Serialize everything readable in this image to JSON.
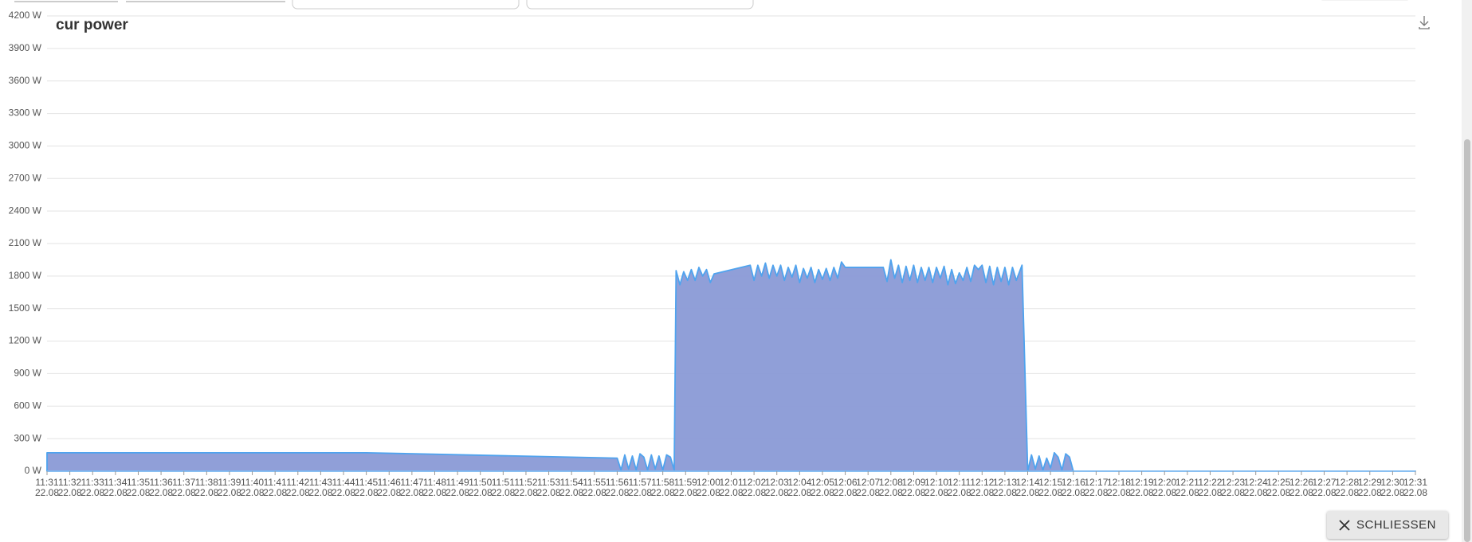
{
  "close_button": "SCHLIESSEN",
  "chart_data": {
    "type": "area",
    "title": "cur power",
    "x": [
      "11:31:00",
      "11:45:00",
      "11:56:00",
      "11:56:10",
      "11:56:20",
      "11:56:30",
      "11:56:40",
      "11:56:50",
      "11:57:00",
      "11:57:10",
      "11:57:20",
      "11:57:30",
      "11:57:40",
      "11:57:50",
      "11:58:00",
      "11:58:10",
      "11:58:20",
      "11:58:30",
      "11:58:35",
      "11:58:45",
      "11:58:55",
      "11:59:05",
      "11:59:15",
      "11:59:25",
      "11:59:35",
      "11:59:45",
      "11:59:55",
      "12:00:05",
      "12:00:15",
      "12:01:50",
      "12:02:00",
      "12:02:10",
      "12:02:20",
      "12:02:30",
      "12:02:40",
      "12:02:50",
      "12:03:00",
      "12:03:10",
      "12:03:20",
      "12:03:30",
      "12:03:40",
      "12:03:50",
      "12:04:00",
      "12:04:10",
      "12:04:20",
      "12:04:30",
      "12:04:40",
      "12:04:50",
      "12:05:00",
      "12:05:10",
      "12:05:20",
      "12:05:30",
      "12:05:40",
      "12:05:50",
      "12:06:00",
      "12:07:40",
      "12:07:50",
      "12:08:00",
      "12:08:10",
      "12:08:20",
      "12:08:30",
      "12:08:40",
      "12:08:50",
      "12:09:00",
      "12:09:10",
      "12:09:20",
      "12:09:30",
      "12:09:40",
      "12:09:50",
      "12:10:00",
      "12:10:10",
      "12:10:20",
      "12:10:30",
      "12:10:40",
      "12:10:50",
      "12:11:00",
      "12:11:10",
      "12:11:20",
      "12:11:30",
      "12:11:40",
      "12:11:50",
      "12:12:00",
      "12:12:10",
      "12:12:20",
      "12:12:30",
      "12:12:40",
      "12:12:50",
      "12:13:00",
      "12:13:10",
      "12:13:20",
      "12:13:30",
      "12:13:45",
      "12:14:00",
      "12:14:10",
      "12:14:20",
      "12:14:30",
      "12:14:40",
      "12:14:50",
      "12:15:00",
      "12:15:10",
      "12:15:20",
      "12:15:30",
      "12:15:40",
      "12:15:50",
      "12:16:00",
      "12:31:00"
    ],
    "values": [
      170,
      170,
      120,
      10,
      150,
      20,
      140,
      10,
      160,
      130,
      10,
      150,
      20,
      140,
      10,
      150,
      130,
      10,
      1850,
      1720,
      1840,
      1760,
      1860,
      1760,
      1880,
      1800,
      1860,
      1740,
      1820,
      1900,
      1760,
      1900,
      1800,
      1920,
      1780,
      1900,
      1800,
      1900,
      1760,
      1880,
      1790,
      1900,
      1740,
      1870,
      1780,
      1880,
      1740,
      1860,
      1770,
      1870,
      1760,
      1880,
      1780,
      1930,
      1880,
      1880,
      1750,
      1950,
      1780,
      1900,
      1740,
      1890,
      1760,
      1900,
      1740,
      1880,
      1760,
      1880,
      1740,
      1880,
      1780,
      1890,
      1720,
      1860,
      1730,
      1830,
      1760,
      1880,
      1750,
      1900,
      1860,
      1900,
      1740,
      1890,
      1720,
      1880,
      1750,
      1880,
      1720,
      1880,
      1760,
      1900,
      0,
      150,
      20,
      140,
      10,
      120,
      30,
      170,
      130,
      10,
      160,
      130,
      0,
      0
    ],
    "color": "#8a9ad6",
    "line_color": "#4fa3ee",
    "xlim": [
      "11:31",
      "12:31"
    ],
    "xticks": [
      {
        "value": "11:31",
        "label": "11:31\n22.08"
      },
      {
        "value": "11:32",
        "label": "11:32\n22.08"
      },
      {
        "value": "11:33",
        "label": "11:33\n22.08"
      },
      {
        "value": "11:34",
        "label": "11:34\n22.08"
      },
      {
        "value": "11:35",
        "label": "11:35\n22.08"
      },
      {
        "value": "11:36",
        "label": "11:36\n22.08"
      },
      {
        "value": "11:37",
        "label": "11:37\n22.08"
      },
      {
        "value": "11:38",
        "label": "11:38\n22.08"
      },
      {
        "value": "11:39",
        "label": "11:39\n22.08"
      },
      {
        "value": "11:40",
        "label": "11:40\n22.08"
      },
      {
        "value": "11:41",
        "label": "11:41\n22.08"
      },
      {
        "value": "11:42",
        "label": "11:42\n22.08"
      },
      {
        "value": "11:43",
        "label": "11:43\n22.08"
      },
      {
        "value": "11:44",
        "label": "11:44\n22.08"
      },
      {
        "value": "11:45",
        "label": "11:45\n22.08"
      },
      {
        "value": "11:46",
        "label": "11:46\n22.08"
      },
      {
        "value": "11:47",
        "label": "11:47\n22.08"
      },
      {
        "value": "11:48",
        "label": "11:48\n22.08"
      },
      {
        "value": "11:49",
        "label": "11:49\n22.08"
      },
      {
        "value": "11:50",
        "label": "11:50\n22.08"
      },
      {
        "value": "11:51",
        "label": "11:51\n22.08"
      },
      {
        "value": "11:52",
        "label": "11:52\n22.08"
      },
      {
        "value": "11:53",
        "label": "11:53\n22.08"
      },
      {
        "value": "11:54",
        "label": "11:54\n22.08"
      },
      {
        "value": "11:55",
        "label": "11:55\n22.08"
      },
      {
        "value": "11:56",
        "label": "11:56\n22.08"
      },
      {
        "value": "11:57",
        "label": "11:57\n22.08"
      },
      {
        "value": "11:58",
        "label": "11:58\n22.08"
      },
      {
        "value": "11:59",
        "label": "11:59\n22.08"
      },
      {
        "value": "12:00",
        "label": "12:00\n22.08"
      },
      {
        "value": "12:01",
        "label": "12:01\n22.08"
      },
      {
        "value": "12:02",
        "label": "12:02\n22.08"
      },
      {
        "value": "12:03",
        "label": "12:03\n22.08"
      },
      {
        "value": "12:04",
        "label": "12:04\n22.08"
      },
      {
        "value": "12:05",
        "label": "12:05\n22.08"
      },
      {
        "value": "12:06",
        "label": "12:06\n22.08"
      },
      {
        "value": "12:07",
        "label": "12:07\n22.08"
      },
      {
        "value": "12:08",
        "label": "12:08\n22.08"
      },
      {
        "value": "12:09",
        "label": "12:09\n22.08"
      },
      {
        "value": "12:10",
        "label": "12:10\n22.08"
      },
      {
        "value": "12:11",
        "label": "12:11\n22.08"
      },
      {
        "value": "12:12",
        "label": "12:12\n22.08"
      },
      {
        "value": "12:13",
        "label": "12:13\n22.08"
      },
      {
        "value": "12:14",
        "label": "12:14\n22.08"
      },
      {
        "value": "12:15",
        "label": "12:15\n22.08"
      },
      {
        "value": "12:16",
        "label": "12:16\n22.08"
      },
      {
        "value": "12:17",
        "label": "12:17\n22.08"
      },
      {
        "value": "12:18",
        "label": "12:18\n22.08"
      },
      {
        "value": "12:19",
        "label": "12:19\n22.08"
      },
      {
        "value": "12:20",
        "label": "12:20\n22.08"
      },
      {
        "value": "12:21",
        "label": "12:21\n22.08"
      },
      {
        "value": "12:22",
        "label": "12:22\n22.08"
      },
      {
        "value": "12:23",
        "label": "12:23\n22.08"
      },
      {
        "value": "12:24",
        "label": "12:24\n22.08"
      },
      {
        "value": "12:25",
        "label": "12:25\n22.08"
      },
      {
        "value": "12:26",
        "label": "12:26\n22.08"
      },
      {
        "value": "12:27",
        "label": "12:27\n22.08"
      },
      {
        "value": "12:28",
        "label": "12:28\n22.08"
      },
      {
        "value": "12:29",
        "label": "12:29\n22.08"
      },
      {
        "value": "12:30",
        "label": "12:30\n22.08"
      },
      {
        "value": "12:31",
        "label": "12:31\n22.08"
      }
    ],
    "ylim": [
      0,
      4200
    ],
    "yticks": [
      {
        "value": 0,
        "label": "0 W"
      },
      {
        "value": 300,
        "label": "300 W"
      },
      {
        "value": 600,
        "label": "600 W"
      },
      {
        "value": 900,
        "label": "900 W"
      },
      {
        "value": 1200,
        "label": "1200 W"
      },
      {
        "value": 1500,
        "label": "1500 W"
      },
      {
        "value": 1800,
        "label": "1800 W"
      },
      {
        "value": 2100,
        "label": "2100 W"
      },
      {
        "value": 2400,
        "label": "2400 W"
      },
      {
        "value": 2700,
        "label": "2700 W"
      },
      {
        "value": 3000,
        "label": "3000 W"
      },
      {
        "value": 3300,
        "label": "3300 W"
      },
      {
        "value": 3600,
        "label": "3600 W"
      },
      {
        "value": 3900,
        "label": "3900 W"
      },
      {
        "value": 4200,
        "label": "4200 W"
      }
    ],
    "grid": true
  }
}
